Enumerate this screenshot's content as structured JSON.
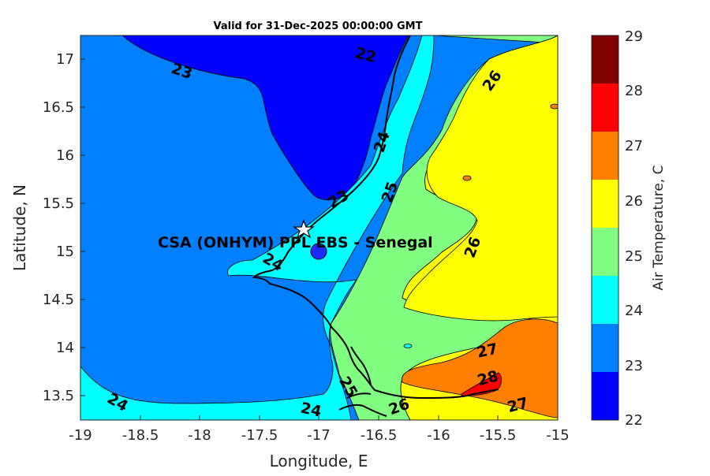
{
  "title": "Valid for 31-Dec-2025 00:00:00 GMT",
  "x_axis": {
    "label": "Longitude, E",
    "ticks": [
      "-19",
      "-18.5",
      "-18",
      "-17.5",
      "-17",
      "-16.5",
      "-16",
      "-15.5",
      "-15"
    ]
  },
  "y_axis": {
    "label": "Latitude, N",
    "ticks": [
      "13.5",
      "14",
      "14.5",
      "15",
      "15.5",
      "16",
      "16.5",
      "17"
    ]
  },
  "colorbar": {
    "label": "Air Temperature, C",
    "ticks": [
      "22",
      "23",
      "24",
      "25",
      "26",
      "27",
      "28",
      "29"
    ],
    "colors": [
      "#0000ff",
      "#0080ff",
      "#00ffff",
      "#80ff80",
      "#ffff00",
      "#ff8000",
      "#ff0000",
      "#800000"
    ]
  },
  "site": {
    "label": "CSA (ONHYM) PPL EBS  - Senegal"
  },
  "contour_labels": [
    "23",
    "22",
    "24",
    "25",
    "26",
    "23",
    "24",
    "26",
    "27",
    "28",
    "24",
    "24",
    "25",
    "26",
    "27"
  ],
  "chart_data": {
    "type": "heatmap",
    "title": "Valid for 31-Dec-2025 00:00:00 GMT",
    "xlabel": "Longitude, E",
    "ylabel": "Latitude, N",
    "xlim": [
      -19,
      -15
    ],
    "ylim": [
      13.25,
      17.25
    ],
    "colorbar_label": "Air Temperature, C",
    "colorbar_range": [
      22,
      29
    ],
    "levels": [
      22,
      23,
      24,
      25,
      26,
      27,
      28,
      29
    ],
    "site_marker": {
      "lon": -17.12,
      "lat": 15.23,
      "label": "CSA (ONHYM) PPL EBS  - Senegal"
    },
    "contour_values_shown": [
      22,
      23,
      24,
      25,
      26,
      27,
      28
    ]
  }
}
